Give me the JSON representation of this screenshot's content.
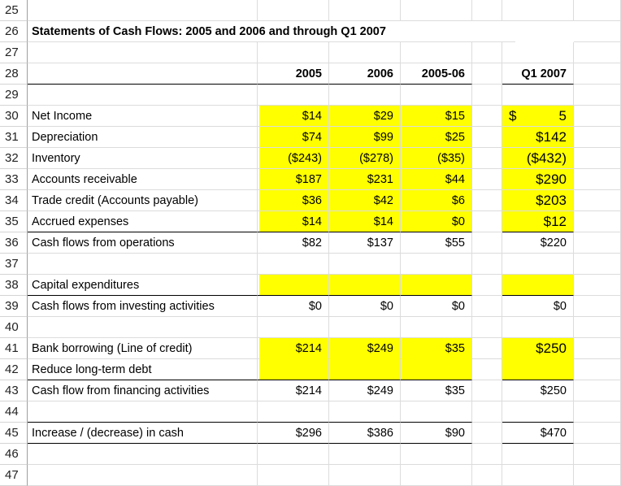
{
  "title": "Statements of Cash Flows: 2005 and 2006 and through Q1 2007",
  "headers": {
    "c2005": "2005",
    "c2006": "2006",
    "c0506": "2005-06",
    "q1": "Q1 2007"
  },
  "row_numbers": [
    "25",
    "26",
    "27",
    "28",
    "29",
    "30",
    "31",
    "32",
    "33",
    "34",
    "35",
    "36",
    "37",
    "38",
    "39",
    "40",
    "41",
    "42",
    "43",
    "44",
    "45",
    "46",
    "47"
  ],
  "rows": {
    "r30": {
      "label": "Net Income",
      "v2005": "$14",
      "v2006": "$29",
      "v0506": "$15",
      "q1_symbol": "$",
      "q1": "5"
    },
    "r31": {
      "label": "Depreciation",
      "v2005": "$74",
      "v2006": "$99",
      "v0506": "$25",
      "q1": "$142"
    },
    "r32": {
      "label": "Inventory",
      "v2005": "($243)",
      "v2006": "($278)",
      "v0506": "($35)",
      "q1": "($432)"
    },
    "r33": {
      "label": "Accounts receivable",
      "v2005": "$187",
      "v2006": "$231",
      "v0506": "$44",
      "q1": "$290"
    },
    "r34": {
      "label": "Trade credit (Accounts payable)",
      "v2005": "$36",
      "v2006": "$42",
      "v0506": "$6",
      "q1": "$203"
    },
    "r35": {
      "label": "Accrued expenses",
      "v2005": "$14",
      "v2006": "$14",
      "v0506": "$0",
      "q1": "$12"
    },
    "r36": {
      "label": "Cash flows from operations",
      "v2005": "$82",
      "v2006": "$137",
      "v0506": "$55",
      "q1": "$220"
    },
    "r38": {
      "label": "Capital expenditures"
    },
    "r39": {
      "label": "Cash flows from investing activities",
      "v2005": "$0",
      "v2006": "$0",
      "v0506": "$0",
      "q1": "$0"
    },
    "r41": {
      "label": "Bank borrowing (Line of credit)",
      "v2005": "$214",
      "v2006": "$249",
      "v0506": "$35",
      "q1": "$250"
    },
    "r42": {
      "label": "Reduce long-term debt"
    },
    "r43": {
      "label": "Cash flow from financing activities",
      "v2005": "$214",
      "v2006": "$249",
      "v0506": "$35",
      "q1": "$250"
    },
    "r45": {
      "label": "Increase / (decrease) in cash",
      "v2005": "$296",
      "v2006": "$386",
      "v0506": "$90",
      "q1": "$470"
    }
  }
}
